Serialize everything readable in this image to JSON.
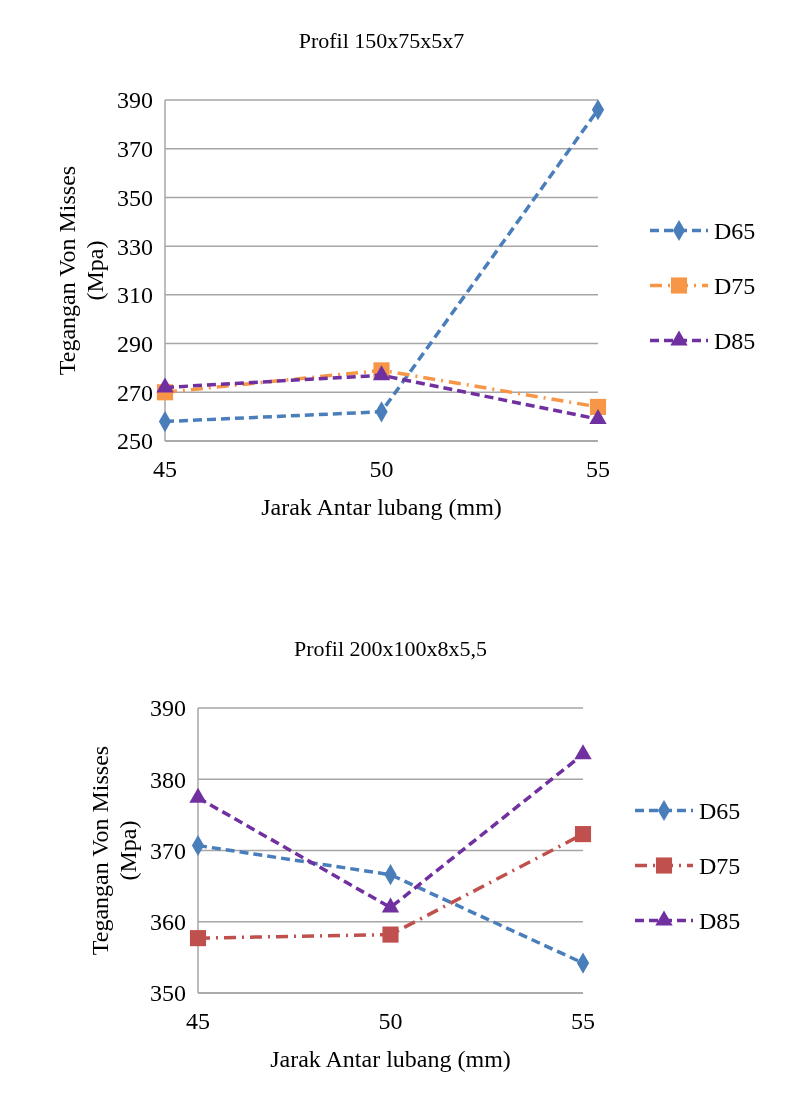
{
  "chart_data": [
    {
      "type": "line",
      "title": "Profil 150x75x5x7",
      "xlabel": "Jarak Antar lubang (mm)",
      "ylabel": "Tegangan Von Misses (Mpa)",
      "x": [
        45,
        50,
        55
      ],
      "xlim": [
        45,
        55
      ],
      "xticks": [
        45,
        50,
        55
      ],
      "ylim": [
        250,
        390
      ],
      "yticks": [
        250,
        270,
        290,
        310,
        330,
        350,
        370,
        390
      ],
      "grid": "y",
      "legend": "right",
      "series": [
        {
          "name": "D65",
          "color": "#4a7ebb",
          "values": [
            258,
            262,
            386
          ],
          "marker": "diamond",
          "line_style": "dashed"
        },
        {
          "name": "D75",
          "color": "#f79646",
          "values": [
            270,
            279,
            264
          ],
          "marker": "square",
          "line_style": "dashdot"
        },
        {
          "name": "D85",
          "color": "#7030a0",
          "values": [
            272,
            277,
            259
          ],
          "marker": "triangle",
          "line_style": "dashed"
        }
      ]
    },
    {
      "type": "line",
      "title": "Profil 200x100x8x5,5",
      "xlabel": "Jarak Antar lubang (mm)",
      "ylabel": "Tegangan Von Misses (Mpa)",
      "x": [
        45,
        50,
        55
      ],
      "xlim": [
        45,
        55
      ],
      "xticks": [
        45,
        50,
        55
      ],
      "ylim": [
        350,
        390
      ],
      "yticks": [
        350,
        360,
        370,
        380,
        390
      ],
      "grid": "y",
      "legend": "right",
      "series": [
        {
          "name": "D65",
          "color": "#4a7ebb",
          "values": [
            370.7,
            366.6,
            354.2
          ],
          "marker": "diamond",
          "line_style": "dashed"
        },
        {
          "name": "D75",
          "color": "#c0504d",
          "values": [
            357.7,
            358.2,
            372.3
          ],
          "marker": "square",
          "line_style": "dashdot"
        },
        {
          "name": "D85",
          "color": "#7030a0",
          "values": [
            377.4,
            362,
            383.5
          ],
          "marker": "triangle",
          "line_style": "dashed"
        }
      ]
    }
  ]
}
